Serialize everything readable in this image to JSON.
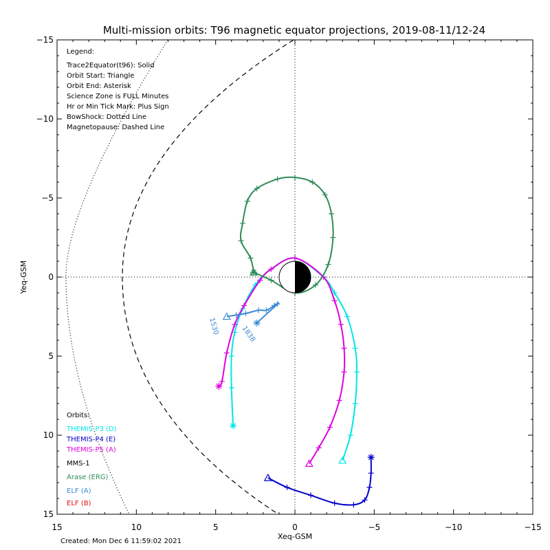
{
  "chart_data": {
    "type": "scatter",
    "title": "Multi-mission orbits: T96 magnetic equator projections, 2019-08-11/12-24",
    "xlabel": "Xeq-GSM",
    "ylabel": "Yeq-GSM",
    "xlim": [
      15,
      -15
    ],
    "ylim": [
      -15,
      15
    ],
    "x_ticks": [
      15,
      10,
      5,
      0,
      -5,
      -10,
      -15
    ],
    "y_ticks": [
      -15,
      -10,
      -5,
      0,
      5,
      10,
      15
    ],
    "x_tick_labels": [
      "15",
      "10",
      "5",
      "0",
      "−5",
      "−10",
      "−15"
    ],
    "y_tick_labels": [
      "−15",
      "−10",
      "−5",
      "0",
      "5",
      "10",
      "15"
    ],
    "grid": "dotted zero lines",
    "legend": {
      "title": "Legend:",
      "lines": [
        "Trace2Equator(t96): Solid",
        "Orbit Start: Triangle",
        "Orbit End: Asterisk",
        "Science Zone is FULL Minutes",
        "Hr or Min Tick Mark: Plus Sign",
        "BowShock: Dotted Line",
        "Magnetopause: Dashed Line"
      ]
    },
    "orbits": {
      "title": "Orbits:",
      "items": [
        {
          "label": "THEMIS-P3 (D)",
          "color": "#00e5e5"
        },
        {
          "label": "THEMIS-P4 (E)",
          "color": "#0000cc"
        },
        {
          "label": "THEMIS-P5 (A)",
          "color": "#e000e0"
        },
        {
          "label": "MMS-1",
          "color": "#000000"
        },
        {
          "label": "Arase (ERG)",
          "color": "#2e8b57"
        },
        {
          "label": "ELF (A)",
          "color": "#3c8ad6"
        },
        {
          "label": "ELF (B)",
          "color": "#e01010"
        }
      ]
    },
    "footer": "Created: Mon Dec  6 11:59:02 2021",
    "annotations": [
      "1530",
      "1838"
    ],
    "series": [
      {
        "name": "THEMIS-P3 (D)",
        "color": "#00e5e5",
        "points": [
          [
            -3,
            11.6
          ],
          [
            -3.5,
            10
          ],
          [
            -3.8,
            8
          ],
          [
            -3.9,
            6
          ],
          [
            -3.8,
            4.5
          ],
          [
            -3.3,
            2.5
          ],
          [
            -2.5,
            1
          ],
          [
            -1.8,
            0
          ],
          [
            0,
            -1.2
          ],
          [
            1.5,
            -0.5
          ],
          [
            2.5,
            0.5
          ],
          [
            3.3,
            2
          ],
          [
            3.8,
            3.5
          ],
          [
            4,
            5
          ],
          [
            4,
            7
          ],
          [
            3.9,
            9.4
          ]
        ]
      },
      {
        "name": "THEMIS-P4 (E)",
        "color": "#0000cc",
        "points": [
          [
            1.7,
            12.7
          ],
          [
            0.5,
            13.3
          ],
          [
            -1,
            13.8
          ],
          [
            -2.5,
            14.3
          ],
          [
            -3.7,
            14.4
          ],
          [
            -4.4,
            14.1
          ],
          [
            -4.7,
            13.3
          ],
          [
            -4.8,
            12.4
          ],
          [
            -4.8,
            11.4
          ]
        ]
      },
      {
        "name": "THEMIS-P5 (A)",
        "color": "#e000e0",
        "points": [
          [
            -0.9,
            11.8
          ],
          [
            -1.5,
            10.8
          ],
          [
            -2.2,
            9.5
          ],
          [
            -2.8,
            7.8
          ],
          [
            -3.1,
            6
          ],
          [
            -3.1,
            4.5
          ],
          [
            -2.9,
            3
          ],
          [
            -2.5,
            1.5
          ],
          [
            -1.8,
            0
          ],
          [
            0,
            -1.2
          ],
          [
            1.5,
            -0.5
          ],
          [
            2.2,
            0.2
          ],
          [
            3.2,
            1.8
          ],
          [
            3.8,
            3
          ],
          [
            4.3,
            4.8
          ],
          [
            4.6,
            6.6
          ],
          [
            4.8,
            6.9
          ]
        ]
      },
      {
        "name": "Arase (ERG)",
        "color": "#2e8b57",
        "points": [
          [
            2.6,
            -0.3
          ],
          [
            2.8,
            -1.2
          ],
          [
            3.4,
            -2.3
          ],
          [
            3.3,
            -3.4
          ],
          [
            3,
            -4.8
          ],
          [
            2.4,
            -5.6
          ],
          [
            1.1,
            -6.2
          ],
          [
            0,
            -6.3
          ],
          [
            -1.1,
            -6
          ],
          [
            -1.9,
            -5.2
          ],
          [
            -2.3,
            -4
          ],
          [
            -2.4,
            -2.5
          ],
          [
            -2.1,
            -0.8
          ],
          [
            -1.3,
            0.5
          ],
          [
            0,
            1
          ],
          [
            1.5,
            0.2
          ],
          [
            2.6,
            -0.3
          ]
        ]
      },
      {
        "name": "ELF (A)",
        "color": "#3c8ad6",
        "points": [
          [
            4.3,
            2.5
          ],
          [
            3.7,
            2.4
          ],
          [
            3.1,
            2.3
          ],
          [
            2.3,
            2.1
          ],
          [
            1.8,
            2.1
          ],
          [
            1.3,
            1.8
          ],
          [
            1.1,
            1.7
          ],
          [
            2.4,
            2.9
          ]
        ]
      }
    ]
  }
}
